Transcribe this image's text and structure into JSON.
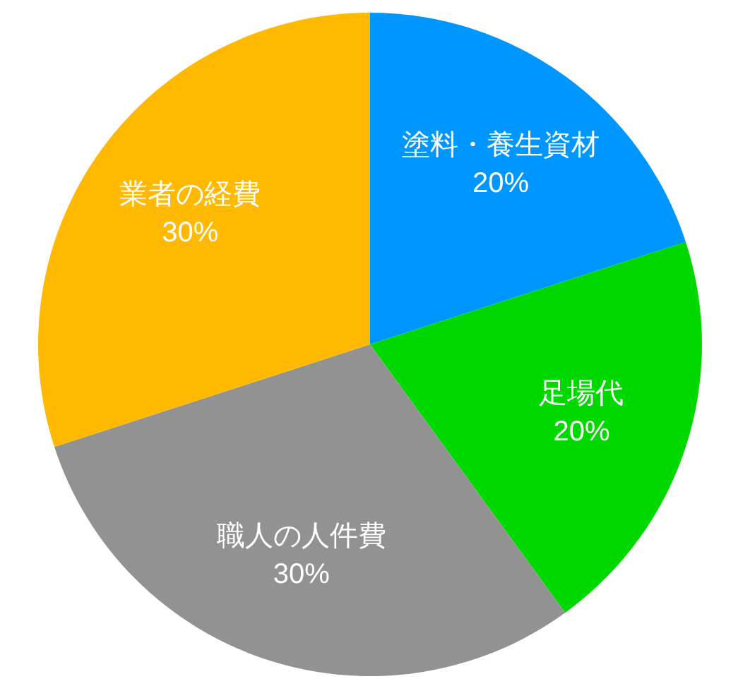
{
  "chart_data": {
    "type": "pie",
    "categories": [
      "塗料・養生資材",
      "足場代",
      "職人の人件費",
      "業者の経費"
    ],
    "values": [
      20,
      20,
      30,
      30
    ],
    "colors": [
      "#0096ff",
      "#00d800",
      "#929292",
      "#ffb900"
    ],
    "value_labels": [
      "20%",
      "20%",
      "30%",
      "30%"
    ]
  }
}
